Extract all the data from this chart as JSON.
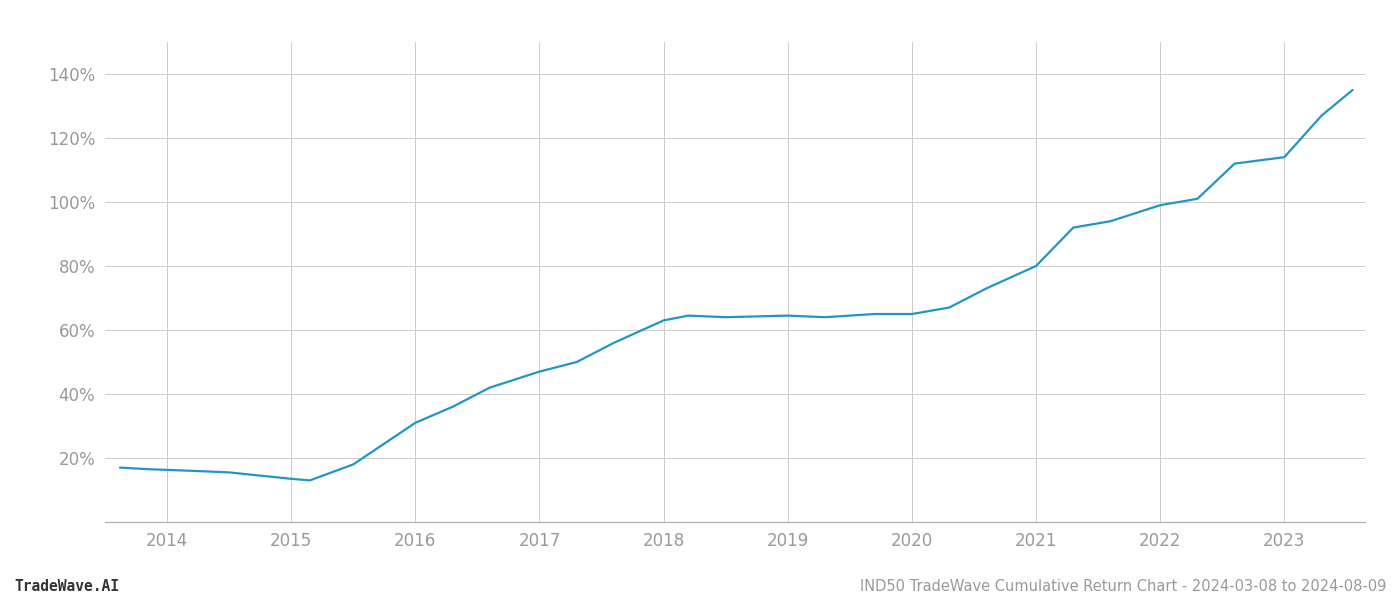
{
  "title": "",
  "footer_left": "TradeWave.AI",
  "footer_right": "IND50 TradeWave Cumulative Return Chart - 2024-03-08 to 2024-08-09",
  "line_color": "#2196c4",
  "background_color": "#ffffff",
  "grid_color": "#cccccc",
  "x_values": [
    2013.62,
    2013.85,
    2014.2,
    2014.5,
    2014.75,
    2015.0,
    2015.15,
    2015.5,
    2016.0,
    2016.3,
    2016.6,
    2017.0,
    2017.3,
    2017.6,
    2018.0,
    2018.2,
    2018.5,
    2019.0,
    2019.3,
    2019.7,
    2020.0,
    2020.3,
    2020.6,
    2021.0,
    2021.3,
    2021.6,
    2022.0,
    2022.3,
    2022.6,
    2023.0,
    2023.3,
    2023.55
  ],
  "y_values": [
    17,
    16.5,
    16,
    15.5,
    14.5,
    13.5,
    13,
    18,
    31,
    36,
    42,
    47,
    50,
    56,
    63,
    64.5,
    64,
    64.5,
    64,
    65,
    65,
    67,
    73,
    80,
    92,
    94,
    99,
    101,
    112,
    114,
    127,
    135
  ],
  "yticks": [
    20,
    40,
    60,
    80,
    100,
    120,
    140
  ],
  "ytick_labels": [
    "20%",
    "40%",
    "60%",
    "80%",
    "100%",
    "120%",
    "140%"
  ],
  "xticks": [
    2014,
    2015,
    2016,
    2017,
    2018,
    2019,
    2020,
    2021,
    2022,
    2023
  ],
  "xtick_labels": [
    "2014",
    "2015",
    "2016",
    "2017",
    "2018",
    "2019",
    "2020",
    "2021",
    "2022",
    "2023"
  ],
  "xlim": [
    2013.5,
    2023.65
  ],
  "ylim": [
    0,
    150
  ],
  "tick_color": "#999999",
  "axis_color": "#aaaaaa",
  "line_width": 1.6,
  "footer_fontsize": 10.5,
  "tick_fontsize": 12
}
